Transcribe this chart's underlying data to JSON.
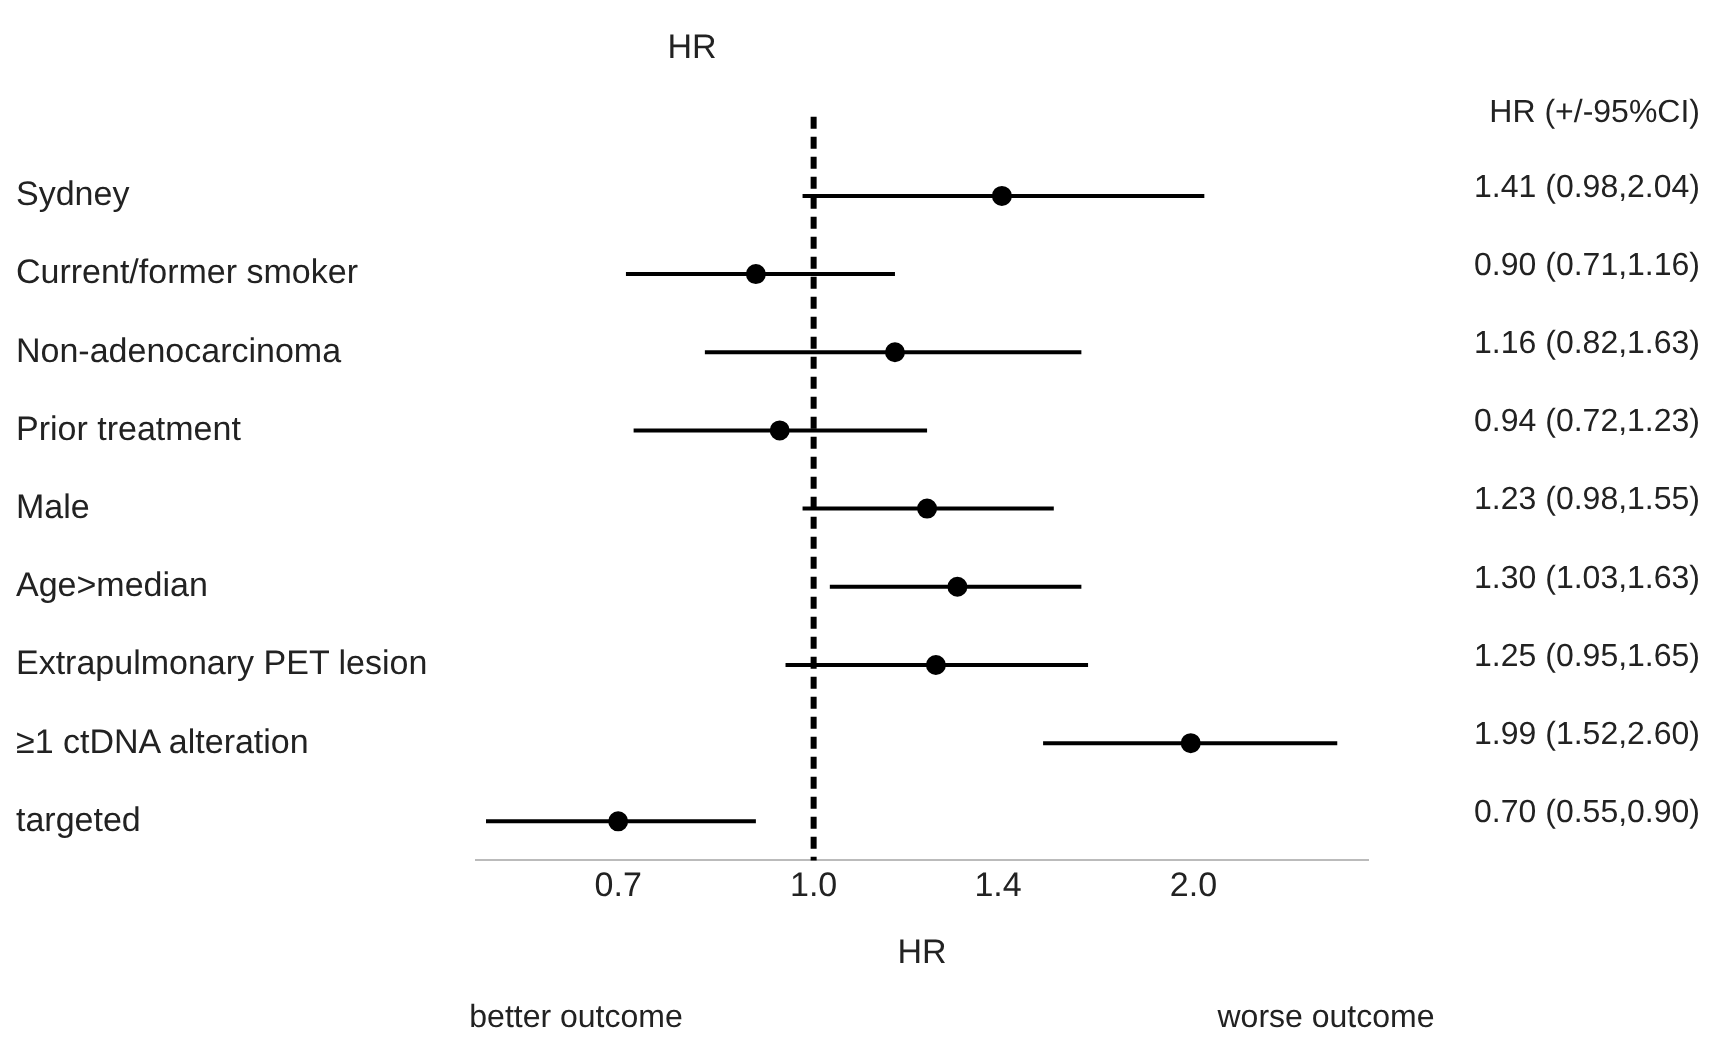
{
  "chart_data": {
    "type": "scatter",
    "orientation": "horizontal",
    "title": "HR",
    "xlabel": "HR",
    "categories": [
      "Sydney",
      "Current/former smoker",
      "Non-adenocarcinoma",
      "Prior treatment",
      "Male",
      "Age>median",
      "Extrapulmonary PET lesion",
      "≥1 ctDNA alteration",
      "targeted"
    ],
    "values": [
      1.41,
      0.9,
      1.16,
      0.94,
      1.23,
      1.3,
      1.25,
      1.99,
      0.7
    ],
    "errors": [
      [
        0.98,
        2.04
      ],
      [
        0.71,
        1.16
      ],
      [
        0.82,
        1.63
      ],
      [
        0.72,
        1.23
      ],
      [
        0.98,
        1.55
      ],
      [
        1.03,
        1.63
      ],
      [
        0.95,
        1.65
      ],
      [
        1.52,
        2.6
      ],
      [
        0.55,
        0.9
      ]
    ],
    "value_labels": [
      "1.41 (0.98,2.04)",
      "0.90 (0.71,1.16)",
      "1.16 (0.82,1.63)",
      "0.94 (0.72,1.23)",
      "1.23 (0.98,1.55)",
      "1.30 (1.03,1.63)",
      "1.25 (0.95,1.65)",
      "1.99 (1.52,2.60)",
      "0.70 (0.55,0.90)"
    ],
    "color": "#000000",
    "marker": "circle",
    "log": "x",
    "xlim": [
      0.54,
      2.75
    ],
    "xticks": [
      0.7,
      {
        "value": 1.0,
        "label": "1.0"
      },
      1.4,
      {
        "value": 2.0,
        "label": "2.0"
      }
    ],
    "ref_lines": [
      {
        "axis": "x",
        "value": 1.0,
        "color": "#000000",
        "line_style": "dashed"
      }
    ],
    "annotations": [
      "HR (+/-95%CI)",
      "better outcome",
      "worse outcome"
    ],
    "grid": false,
    "legend": false
  }
}
